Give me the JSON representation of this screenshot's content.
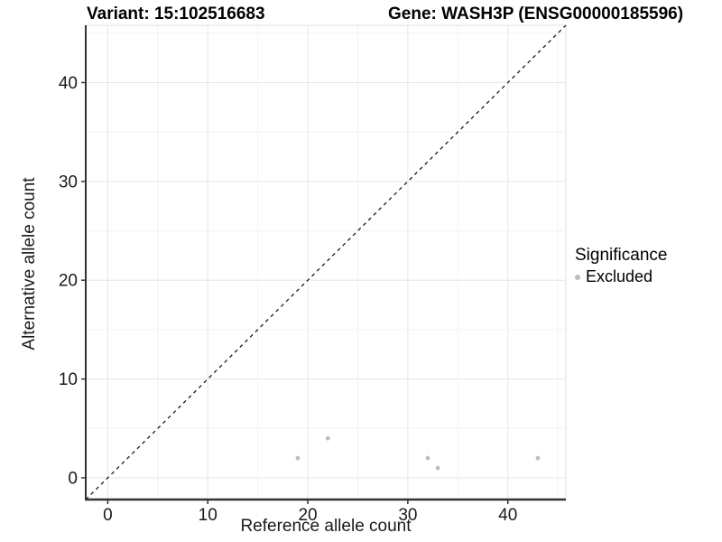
{
  "header": {
    "variant_title": "Variant: 15:102516683",
    "gene_title": "Gene: WASH3P (ENSG00000185596)"
  },
  "chart_data": {
    "type": "scatter",
    "xlabel": "Reference allele count",
    "ylabel": "Alternative allele count",
    "x_ticks": [
      0,
      10,
      20,
      30,
      40
    ],
    "y_ticks": [
      0,
      10,
      20,
      30,
      40
    ],
    "x_minor_ticks": [
      5,
      15,
      25,
      35,
      45
    ],
    "y_minor_ticks": [
      5,
      15,
      25,
      35,
      45
    ],
    "xlim": [
      -2.2,
      45.8
    ],
    "ylim": [
      -2.2,
      45.8
    ],
    "grid": "major-and-minor",
    "identity_line": {
      "style": "dashed",
      "from": -2.2,
      "to": 45.8,
      "color": "#1a1a1a"
    },
    "series": [
      {
        "name": "Excluded",
        "color": "#bdbdbd",
        "points": [
          [
            19,
            2
          ],
          [
            22,
            4
          ],
          [
            32,
            2
          ],
          [
            33,
            1
          ],
          [
            43,
            2
          ]
        ]
      }
    ],
    "legend": {
      "title": "Significance",
      "position": "right",
      "entries": [
        {
          "label": "Excluded",
          "color": "#bdbdbd"
        }
      ]
    },
    "colors": {
      "grid_major": "#e6e6e6",
      "grid_minor": "#f2f2f2",
      "panel_border": "#e2e2e2",
      "axis_line": "#333333",
      "tick_mark": "#333333",
      "point": "#bdbdbd"
    }
  }
}
